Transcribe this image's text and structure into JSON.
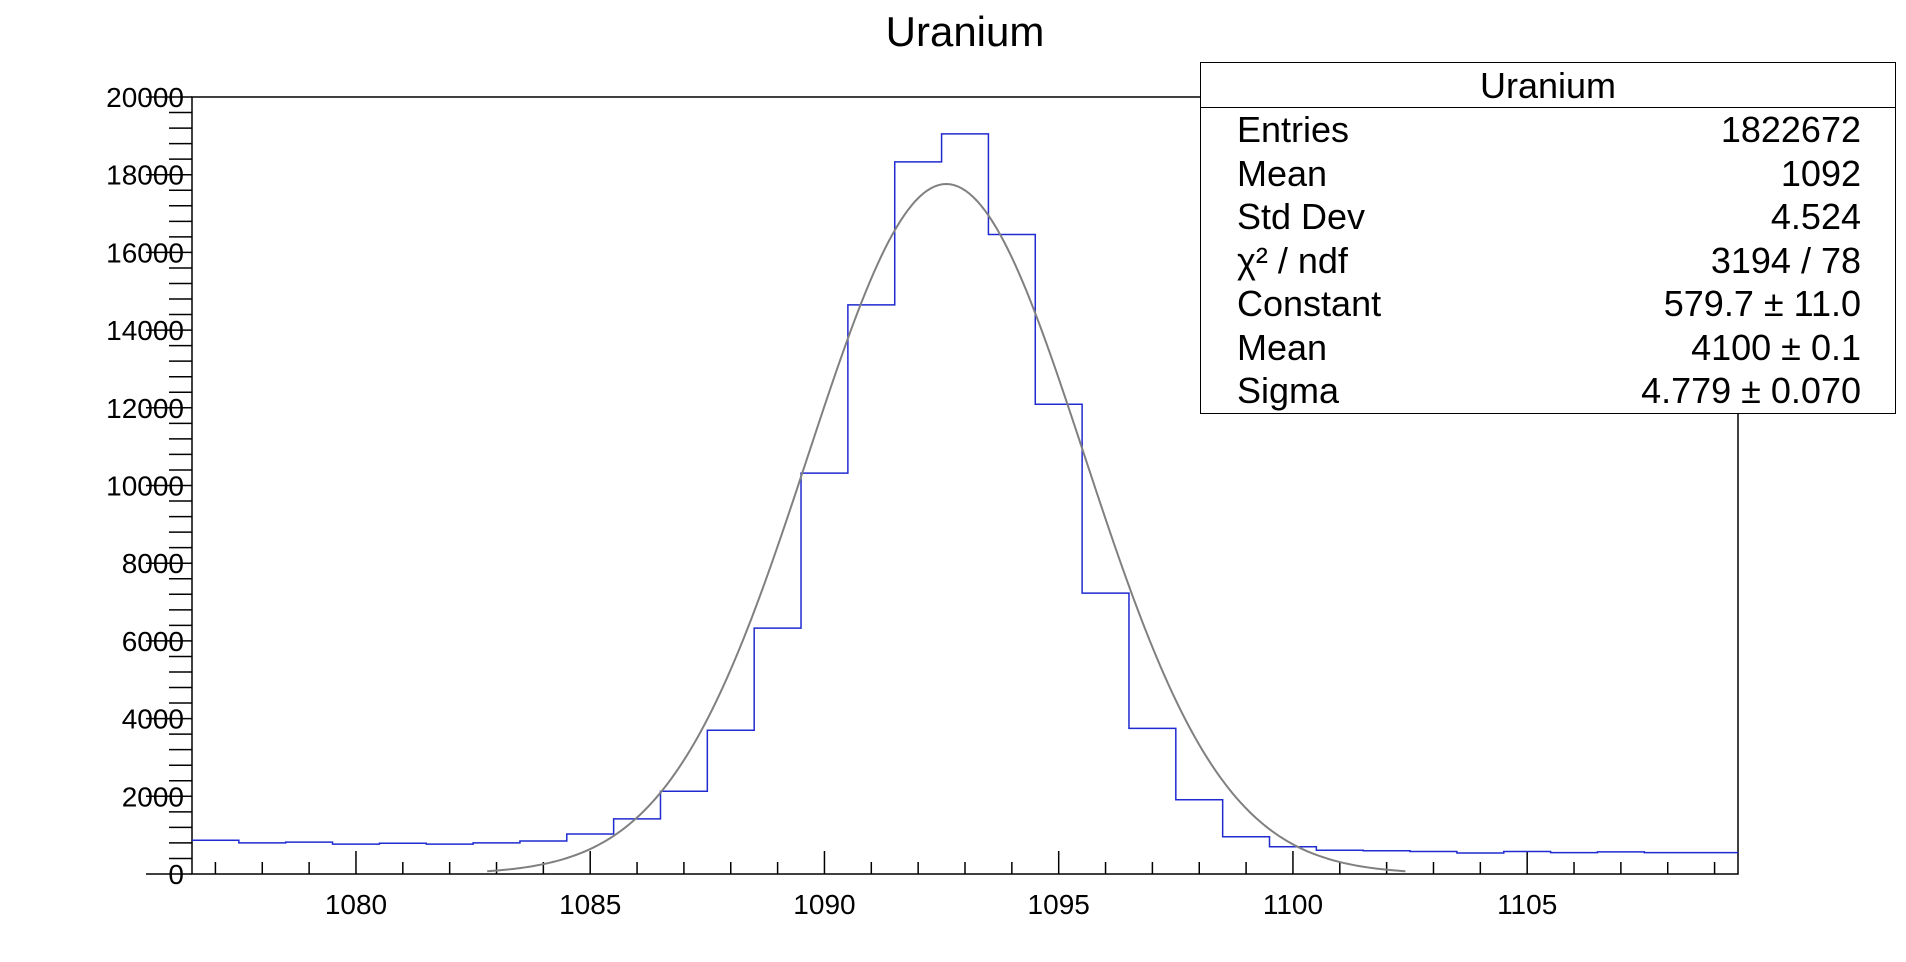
{
  "chart_data": {
    "type": "histogram",
    "title": "Uranium",
    "xlabel": "",
    "ylabel": "",
    "xlim": [
      1076.5,
      1109.5
    ],
    "ylim": [
      0,
      20000
    ],
    "x_ticks": [
      1080,
      1085,
      1090,
      1095,
      1100,
      1105
    ],
    "y_ticks": [
      0,
      2000,
      4000,
      6000,
      8000,
      10000,
      12000,
      14000,
      16000,
      18000,
      20000
    ],
    "bin_edges": [
      1076.5,
      1077.5,
      1078.5,
      1079.5,
      1080.5,
      1081.5,
      1082.5,
      1083.5,
      1084.5,
      1085.5,
      1086.5,
      1087.5,
      1088.5,
      1089.5,
      1090.5,
      1091.5,
      1092.5,
      1093.5,
      1094.5,
      1095.5,
      1096.5,
      1097.5,
      1098.5,
      1099.5,
      1100.5,
      1101.5,
      1102.5,
      1103.5,
      1104.5,
      1105.5,
      1106.5,
      1107.5,
      1108.5,
      1109.5
    ],
    "bin_values": [
      870,
      800,
      820,
      770,
      790,
      770,
      800,
      850,
      1030,
      1420,
      2130,
      3700,
      6330,
      10320,
      14650,
      18330,
      19050,
      16460,
      12090,
      7230,
      3750,
      1910,
      960,
      700,
      610,
      600,
      580,
      540,
      580,
      550,
      570,
      550,
      550
    ],
    "fit": {
      "function": "gaus",
      "peak": 17760,
      "mean": 1092.6,
      "sigma": 2.95,
      "range": [
        1082.8,
        1102.4
      ]
    },
    "colors": {
      "histogram": "#1f2bd1",
      "fit": "#808080",
      "frame": "#000000"
    },
    "stats_box": {
      "title": "Uranium",
      "rows": [
        {
          "label": "Entries",
          "value": "1822672"
        },
        {
          "label": "Mean",
          "value": "1092"
        },
        {
          "label": "Std Dev",
          "value": "4.524"
        },
        {
          "label": "χ² / ndf",
          "value": "3194 / 78"
        },
        {
          "label": "Constant",
          "value": "579.7 ± 11.0"
        },
        {
          "label": "Mean",
          "value": "4100 ± 0.1"
        },
        {
          "label": "Sigma",
          "value": "4.779 ± 0.070"
        }
      ]
    }
  }
}
